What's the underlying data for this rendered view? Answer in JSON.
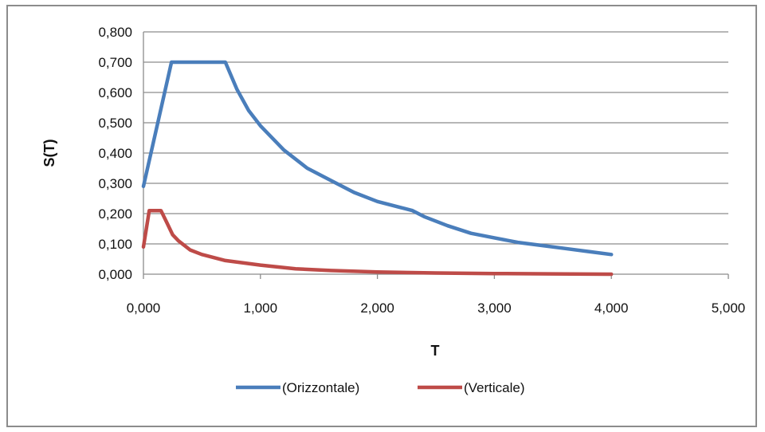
{
  "chart_data": {
    "type": "line",
    "title": "",
    "xlabel": "T",
    "ylabel": "S(T)",
    "xlim": [
      0,
      5
    ],
    "ylim": [
      0,
      0.8
    ],
    "x_ticks": [
      {
        "value": 0,
        "label": "0,000"
      },
      {
        "value": 1,
        "label": "1,000"
      },
      {
        "value": 2,
        "label": "2,000"
      },
      {
        "value": 3,
        "label": "3,000"
      },
      {
        "value": 4,
        "label": "4,000"
      },
      {
        "value": 5,
        "label": "5,000"
      }
    ],
    "y_ticks": [
      {
        "value": 0,
        "label": "0,000"
      },
      {
        "value": 0.1,
        "label": "0,100"
      },
      {
        "value": 0.2,
        "label": "0,200"
      },
      {
        "value": 0.3,
        "label": "0,300"
      },
      {
        "value": 0.4,
        "label": "0,400"
      },
      {
        "value": 0.5,
        "label": "0,500"
      },
      {
        "value": 0.6,
        "label": "0,600"
      },
      {
        "value": 0.7,
        "label": "0,700"
      },
      {
        "value": 0.8,
        "label": "0,800"
      }
    ],
    "grid": "horizontal",
    "legend_position": "bottom",
    "series": [
      {
        "name": "(Orizzontale)",
        "color": "#4a7ebb",
        "x": [
          0,
          0.24,
          0.7,
          0.8,
          0.9,
          1.0,
          1.2,
          1.4,
          1.6,
          1.8,
          2.0,
          2.2,
          2.3,
          2.4,
          2.6,
          2.8,
          3.0,
          3.2,
          3.4,
          3.6,
          3.8,
          4.0
        ],
        "y": [
          0.29,
          0.7,
          0.7,
          0.61,
          0.54,
          0.49,
          0.41,
          0.35,
          0.31,
          0.27,
          0.24,
          0.22,
          0.21,
          0.19,
          0.16,
          0.135,
          0.12,
          0.105,
          0.095,
          0.085,
          0.075,
          0.065
        ]
      },
      {
        "name": "(Verticale)",
        "color": "#be4b48",
        "x": [
          0,
          0.05,
          0.15,
          0.2,
          0.25,
          0.3,
          0.4,
          0.5,
          0.7,
          1.0,
          1.3,
          1.6,
          2.0,
          2.5,
          3.0,
          3.5,
          4.0
        ],
        "y": [
          0.09,
          0.21,
          0.21,
          0.17,
          0.13,
          0.11,
          0.08,
          0.065,
          0.045,
          0.03,
          0.018,
          0.012,
          0.007,
          0.004,
          0.002,
          0.001,
          0.0
        ]
      }
    ]
  }
}
